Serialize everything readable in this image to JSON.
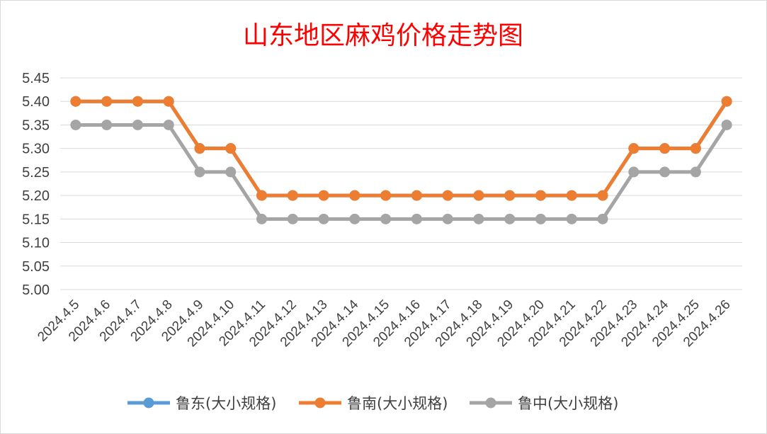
{
  "chart_data": {
    "type": "line",
    "title": "山东地区麻鸡价格走势图",
    "xlabel": "",
    "ylabel": "",
    "ylim": [
      5.0,
      5.45
    ],
    "ytick_step": 0.05,
    "grid": true,
    "legend_position": "bottom",
    "categories": [
      "2024.4.5",
      "2024.4.6",
      "2024.4.7",
      "2024.4.8",
      "2024.4.9",
      "2024.4.10",
      "2024.4.11",
      "2024.4.12",
      "2024.4.13",
      "2024.4.14",
      "2024.4.15",
      "2024.4.16",
      "2024.4.17",
      "2024.4.18",
      "2024.4.19",
      "2024.4.20",
      "2024.4.21",
      "2024.4.22",
      "2024.4.23",
      "2024.4.24",
      "2024.4.25",
      "2024.4.26"
    ],
    "series": [
      {
        "name": "鲁东(大小规格)",
        "color": "#5b9bd5",
        "values": [
          5.4,
          5.4,
          5.4,
          5.4,
          5.3,
          5.3,
          5.2,
          5.2,
          5.2,
          5.2,
          5.2,
          5.2,
          5.2,
          5.2,
          5.2,
          5.2,
          5.2,
          5.2,
          5.3,
          5.3,
          5.3,
          5.4
        ]
      },
      {
        "name": "鲁南(大小规格)",
        "color": "#ed7d31",
        "values": [
          5.4,
          5.4,
          5.4,
          5.4,
          5.3,
          5.3,
          5.2,
          5.2,
          5.2,
          5.2,
          5.2,
          5.2,
          5.2,
          5.2,
          5.2,
          5.2,
          5.2,
          5.2,
          5.3,
          5.3,
          5.3,
          5.4
        ]
      },
      {
        "name": "鲁中(大小规格)",
        "color": "#a5a5a5",
        "values": [
          5.35,
          5.35,
          5.35,
          5.35,
          5.25,
          5.25,
          5.15,
          5.15,
          5.15,
          5.15,
          5.15,
          5.15,
          5.15,
          5.15,
          5.15,
          5.15,
          5.15,
          5.15,
          5.25,
          5.25,
          5.25,
          5.35
        ]
      }
    ]
  }
}
